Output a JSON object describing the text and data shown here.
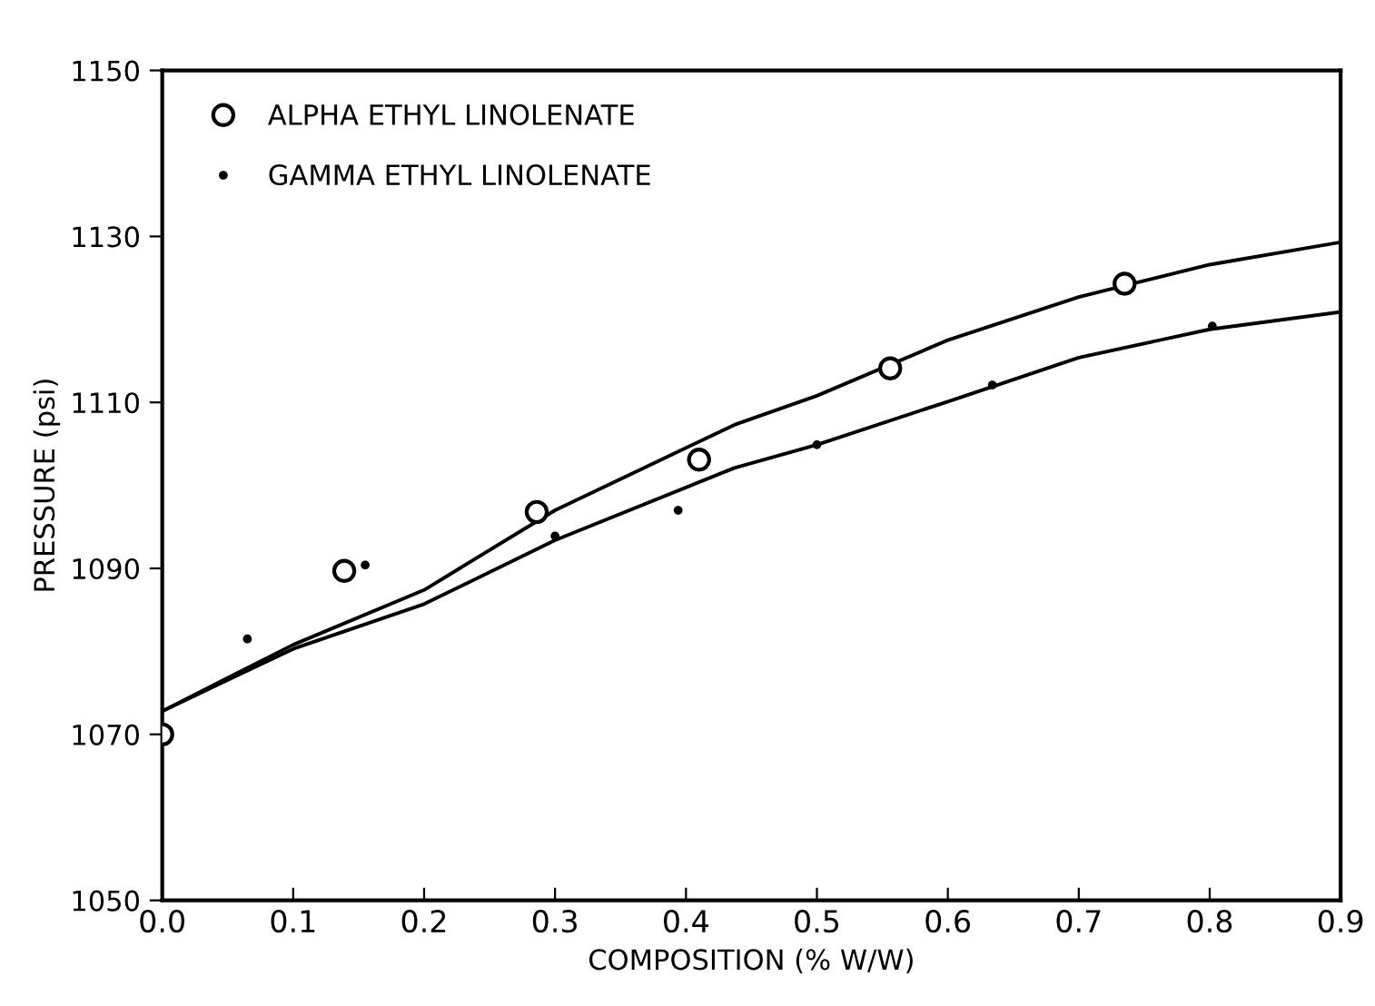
{
  "chart_data": {
    "type": "scatter",
    "xlabel": "COMPOSITION (% W/W)",
    "ylabel": "PRESSURE (psi)",
    "xlim": [
      0,
      0.9
    ],
    "xticks": [
      {
        "value": 0,
        "label": "0.0"
      },
      0.1,
      0.2,
      0.3,
      0.4,
      0.5,
      0.6,
      0.7,
      0.8,
      0.9
    ],
    "ylim": [
      1050,
      1150
    ],
    "yticks": [
      1050,
      1070,
      1090,
      1110,
      1130,
      1150
    ],
    "grid": false,
    "legend": "top left",
    "series": [
      {
        "name": "ALPHA ETHYL LINOLENATE",
        "marker": "circle",
        "color": "#000000",
        "x": [
          0.0,
          0.139,
          0.286,
          0.41,
          0.556,
          0.735
        ],
        "values": [
          1070,
          1089.7,
          1096.8,
          1103.1,
          1114.1,
          1124.3
        ]
      },
      {
        "name": "GAMMA ETHYL LINOLENATE",
        "marker": "point",
        "color": "#000000",
        "x": [
          0.065,
          0.155,
          0.3,
          0.394,
          0.5,
          0.634,
          0.802
        ],
        "values": [
          1081.5,
          1090.4,
          1093.9,
          1097.0,
          1104.9,
          1112.1,
          1119.2
        ]
      },
      {
        "type": "line",
        "color": "#000000",
        "x": [
          0,
          0.1,
          0.2,
          0.3,
          0.437,
          0.5,
          0.6,
          0.7,
          0.8,
          0.9
        ],
        "values": [
          1072.8,
          1080.8,
          1087.4,
          1097.0,
          1107.3,
          1110.8,
          1117.5,
          1122.7,
          1126.6,
          1129.3
        ]
      },
      {
        "type": "line",
        "color": "#000000",
        "x": [
          0,
          0.1,
          0.2,
          0.3,
          0.437,
          0.5,
          0.6,
          0.7,
          0.8,
          0.9
        ],
        "values": [
          1072.8,
          1080.3,
          1085.7,
          1093.4,
          1102.1,
          1104.9,
          1110.1,
          1115.4,
          1118.8,
          1120.9
        ]
      }
    ]
  }
}
